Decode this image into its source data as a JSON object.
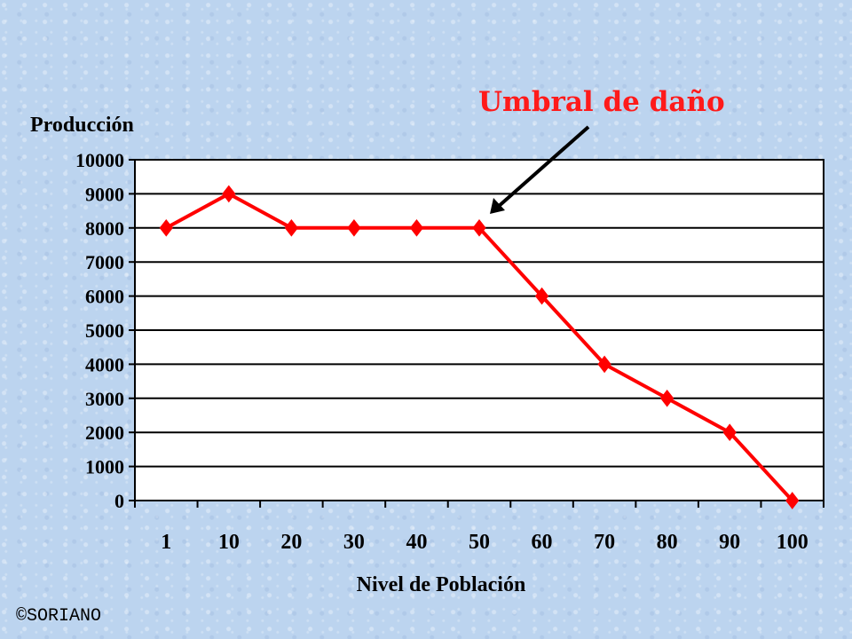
{
  "chart_data": {
    "type": "line",
    "ylabel": "Producción",
    "xlabel": "Nivel de Población",
    "categories": [
      "1",
      "10",
      "20",
      "30",
      "40",
      "50",
      "60",
      "70",
      "80",
      "90",
      "100"
    ],
    "series": [
      {
        "values": [
          8000,
          9000,
          8000,
          8000,
          8000,
          8000,
          6000,
          4000,
          3000,
          2000,
          0
        ],
        "color": "#ff0000"
      }
    ],
    "ylim": [
      0,
      10000
    ],
    "yticks": [
      0,
      1000,
      2000,
      3000,
      4000,
      5000,
      6000,
      7000,
      8000,
      9000,
      10000
    ],
    "grid": "horizontal",
    "annotation": {
      "text": "Umbral de daño",
      "category": "50",
      "value": 8000,
      "color": "#ff1a1a"
    }
  },
  "footer": {
    "copyright": "©SORIANO"
  }
}
